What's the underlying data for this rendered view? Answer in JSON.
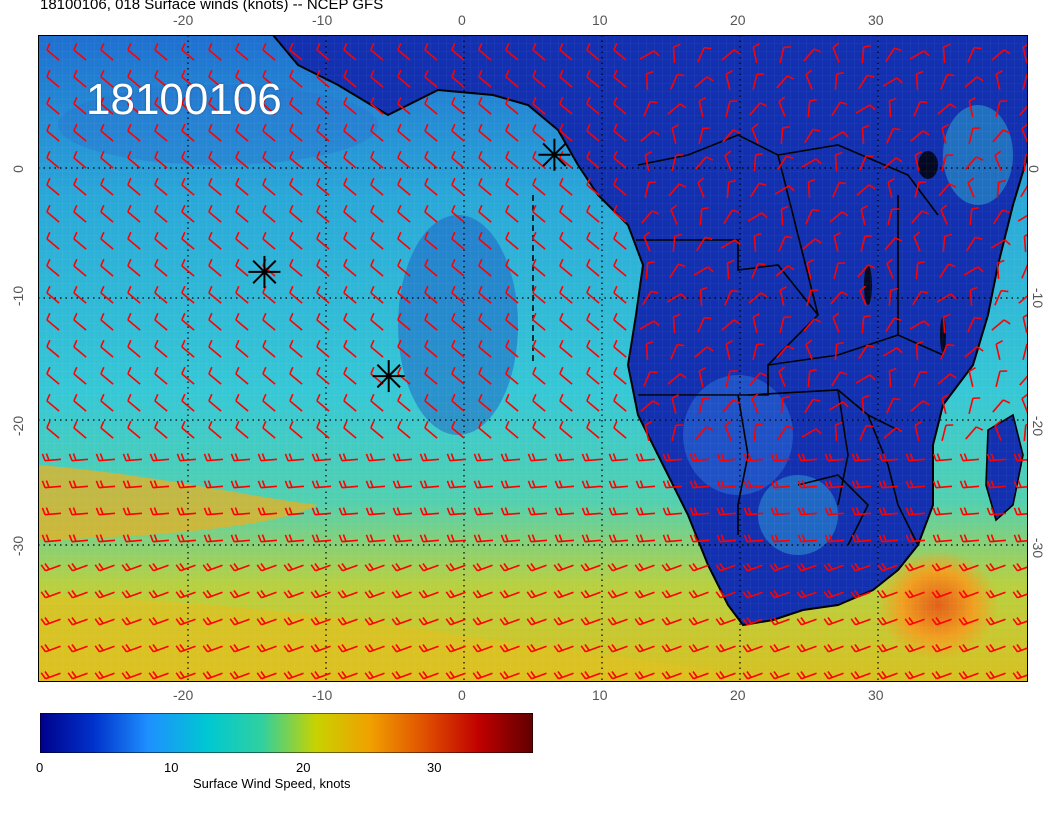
{
  "title": "18100106, 018 Surface winds (knots) -- NCEP GFS",
  "stamp": "18100106",
  "axes": {
    "lon_ticks": [
      "-20",
      "-10",
      "0",
      "10",
      "20",
      "30"
    ],
    "lat_ticks": [
      "0",
      "-10",
      "-20",
      "-30"
    ]
  },
  "colorbar": {
    "title": "Surface Wind Speed, knots",
    "ticks": [
      "0",
      "10",
      "20",
      "30"
    ],
    "range": [
      0,
      37
    ],
    "colors": [
      "#00008b",
      "#0033cc",
      "#1e90ff",
      "#00c8d2",
      "#30d0a0",
      "#c8d200",
      "#f0a000",
      "#e05000",
      "#c00000",
      "#600000"
    ]
  },
  "markers": {
    "symbol": "asterisk",
    "points": [
      {
        "lon": 6.5,
        "lat": 0.5
      },
      {
        "lon": -14.5,
        "lat": -8.5
      },
      {
        "lon": -5.5,
        "lat": -16.5
      }
    ]
  },
  "colors": {
    "barbs": "#ff0000",
    "coast": "#000000",
    "grid": "#000000"
  },
  "icons": {
    "wind_barb": "wind-barb-icon",
    "marker": "asterisk-icon"
  }
}
